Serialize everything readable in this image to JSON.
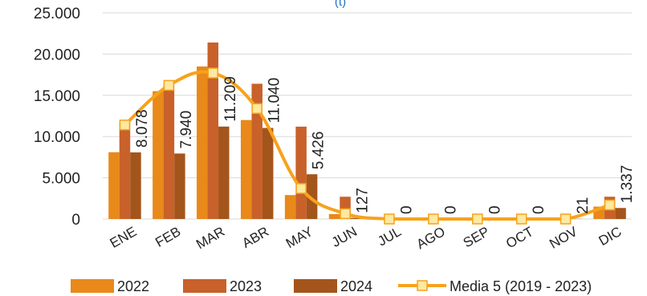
{
  "chart_data": {
    "type": "bar",
    "unit_label": "(t)",
    "categories": [
      "ENE",
      "FEB",
      "MAR",
      "ABR",
      "MAY",
      "JUN",
      "JUL",
      "AGO",
      "SEP",
      "OCT",
      "NOV",
      "DIC"
    ],
    "series": [
      {
        "name": "2022",
        "type": "bar",
        "color": "#E8891A",
        "values": [
          8100,
          15500,
          18500,
          12000,
          2900,
          600,
          0,
          0,
          0,
          0,
          0,
          1500
        ]
      },
      {
        "name": "2023",
        "type": "bar",
        "color": "#C8612A",
        "values": [
          11800,
          16200,
          21400,
          16400,
          11200,
          2700,
          0,
          0,
          0,
          0,
          0,
          2700
        ]
      },
      {
        "name": "2024",
        "type": "bar",
        "color": "#A4551B",
        "values": [
          8078,
          7940,
          11209,
          11040,
          5426,
          127,
          0,
          0,
          0,
          0,
          21,
          1337
        ]
      },
      {
        "name": "Media 5 (2019 - 2023)",
        "type": "line",
        "color": "#F7A21B",
        "marker_fill": "#FDE9A0",
        "values": [
          11400,
          16200,
          17700,
          13400,
          3700,
          650,
          0,
          0,
          0,
          0,
          0,
          1700
        ]
      }
    ],
    "data_labels": [
      "8.078",
      "7.940",
      "11.209",
      "11.040",
      "5.426",
      "127",
      "0",
      "0",
      "0",
      "0",
      "21",
      "1.337"
    ],
    "y_ticks": [
      "0",
      "5.000",
      "10.000",
      "15.000",
      "20.000",
      "25.000"
    ],
    "ylim": [
      0,
      25000
    ],
    "grid": true,
    "legend": "bottom"
  }
}
